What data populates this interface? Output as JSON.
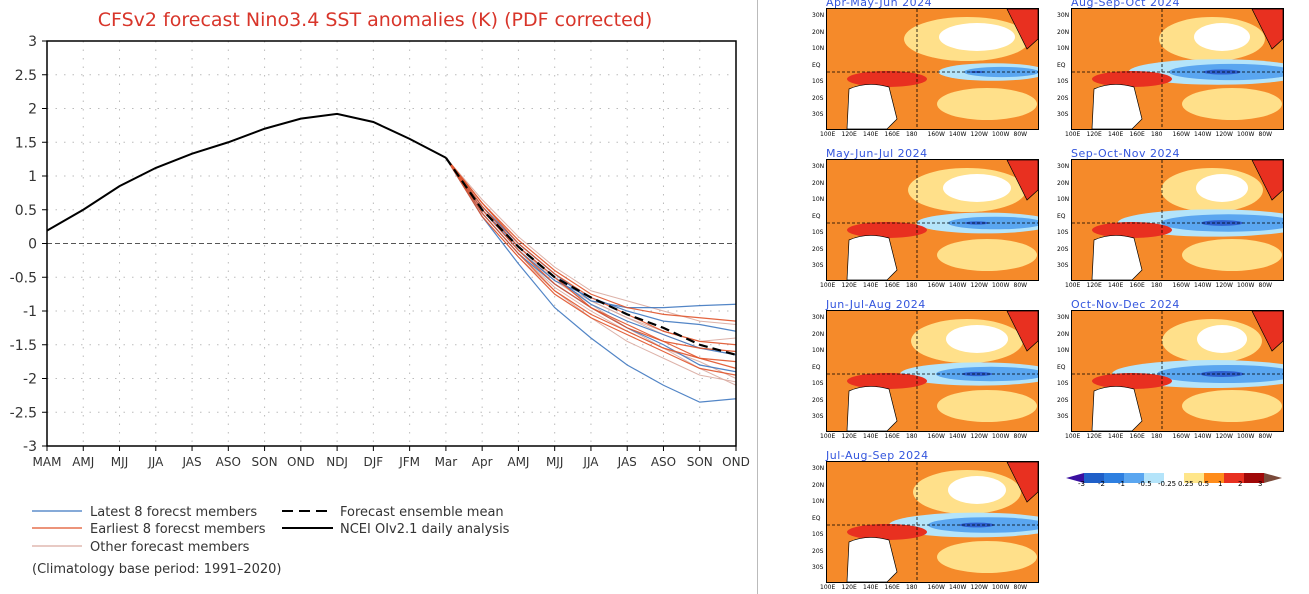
{
  "chart_data": {
    "type": "line",
    "title": "CFSv2 forecast Nino3.4 SST anomalies (K) (PDF corrected)",
    "xlabel": "",
    "ylabel": "",
    "categories": [
      "MAM",
      "AMJ",
      "MJJ",
      "JJA",
      "JAS",
      "ASO",
      "SON",
      "OND",
      "NDJ",
      "DJF",
      "JFM",
      "Mar",
      "Apr",
      "AMJ",
      "MJJ",
      "JJA",
      "JAS",
      "ASO",
      "SON",
      "OND"
    ],
    "ylim": [
      -3,
      3
    ],
    "yticks": [
      "3",
      "2.5",
      "2",
      "1.5",
      "1",
      "0.5",
      "0",
      "-0.5",
      "-1",
      "-1.5",
      "-2",
      "-2.5",
      "-3"
    ],
    "grid": true,
    "zero_line": "dashed",
    "analysis": {
      "name": "NCEI OIv2.1 daily analysis",
      "color": "#000000",
      "start_index": 0,
      "values": [
        0.19,
        0.5,
        0.85,
        1.12,
        1.33,
        1.5,
        1.7,
        1.85,
        1.92,
        1.8,
        1.55,
        1.27
      ]
    },
    "ensemble_mean": {
      "name": "Forecast ensemble mean",
      "color": "#000000",
      "start_index": 11,
      "values": [
        1.27,
        0.5,
        -0.05,
        -0.5,
        -0.8,
        -1.05,
        -1.25,
        -1.5,
        -1.65
      ]
    },
    "members": [
      {
        "group": "latest",
        "values": [
          1.27,
          0.4,
          -0.3,
          -0.95,
          -1.4,
          -1.8,
          -2.1,
          -2.35,
          -2.3
        ]
      },
      {
        "group": "latest",
        "values": [
          1.27,
          0.55,
          0.0,
          -0.45,
          -0.85,
          -0.95,
          -0.95,
          -0.92,
          -0.9
        ]
      },
      {
        "group": "latest",
        "values": [
          1.27,
          0.5,
          -0.1,
          -0.55,
          -0.8,
          -1.0,
          -1.15,
          -1.2,
          -1.3
        ]
      },
      {
        "group": "latest",
        "values": [
          1.27,
          0.45,
          -0.15,
          -0.6,
          -0.95,
          -1.25,
          -1.5,
          -1.8,
          -1.9
        ]
      },
      {
        "group": "latest",
        "values": [
          1.27,
          0.5,
          -0.05,
          -0.5,
          -0.9,
          -1.15,
          -1.35,
          -1.55,
          -1.65
        ]
      },
      {
        "group": "earliest",
        "values": [
          1.27,
          0.6,
          0.05,
          -0.4,
          -0.75,
          -0.95,
          -1.05,
          -1.1,
          -1.15
        ]
      },
      {
        "group": "earliest",
        "values": [
          1.27,
          0.45,
          -0.15,
          -0.7,
          -1.05,
          -1.3,
          -1.55,
          -1.7,
          -1.85
        ]
      },
      {
        "group": "earliest",
        "values": [
          1.27,
          0.55,
          -0.05,
          -0.5,
          -0.95,
          -1.25,
          -1.45,
          -1.55,
          -1.6
        ]
      },
      {
        "group": "earliest",
        "values": [
          1.27,
          0.4,
          -0.2,
          -0.75,
          -1.1,
          -1.35,
          -1.6,
          -1.85,
          -1.95
        ]
      },
      {
        "group": "earliest",
        "values": [
          1.27,
          0.6,
          0.0,
          -0.45,
          -0.8,
          -1.05,
          -1.3,
          -1.45,
          -1.5
        ]
      },
      {
        "group": "earliest",
        "values": [
          1.27,
          0.5,
          -0.1,
          -0.6,
          -0.95,
          -1.2,
          -1.45,
          -1.7,
          -1.75
        ]
      },
      {
        "group": "other",
        "values": [
          1.27,
          0.65,
          0.1,
          -0.35,
          -0.7,
          -0.85,
          -1.0,
          -1.15,
          -1.2
        ]
      },
      {
        "group": "other",
        "values": [
          1.27,
          0.5,
          -0.1,
          -0.55,
          -0.9,
          -1.25,
          -1.55,
          -1.85,
          -2.1
        ]
      },
      {
        "group": "other",
        "values": [
          1.27,
          0.55,
          0.0,
          -0.45,
          -0.85,
          -1.1,
          -1.35,
          -1.55,
          -1.6
        ]
      },
      {
        "group": "other",
        "values": [
          1.27,
          0.45,
          -0.15,
          -0.65,
          -1.0,
          -1.3,
          -1.55,
          -1.75,
          -2.0
        ]
      },
      {
        "group": "other",
        "values": [
          1.27,
          0.55,
          -0.05,
          -0.55,
          -0.85,
          -1.1,
          -1.3,
          -1.45,
          -1.4
        ]
      },
      {
        "group": "other",
        "values": [
          1.27,
          0.4,
          -0.2,
          -0.7,
          -1.1,
          -1.45,
          -1.7,
          -1.95,
          -2.05
        ]
      }
    ],
    "colors": {
      "latest": "#3f78c0",
      "earliest": "#e0532a",
      "other": "#d9aaa0",
      "title": "#d8352a"
    },
    "legend": {
      "latest": "Latest 8 forecst members",
      "earliest": "Earliest 8 forecst members",
      "other": "Other forecast members",
      "mean": "Forecast ensemble mean",
      "analysis": "NCEI OIv2.1 daily analysis",
      "note": "(Climatology base period: 1991–2020)"
    }
  },
  "maps": {
    "panels": [
      {
        "title": "Apr-May-Jun 2024",
        "strength": 0.35
      },
      {
        "title": "May-Jun-Jul 2024",
        "strength": 0.55
      },
      {
        "title": "Jun-Jul-Aug 2024",
        "strength": 0.7
      },
      {
        "title": "Jul-Aug-Sep 2024",
        "strength": 0.8
      },
      {
        "title": "Aug-Sep-Oct 2024",
        "strength": 0.85
      },
      {
        "title": "Sep-Oct-Nov 2024",
        "strength": 0.95
      },
      {
        "title": "Oct-Nov-Dec 2024",
        "strength": 1.0
      }
    ],
    "lat_labels": [
      "30N",
      "20N",
      "10N",
      "EQ",
      "10S",
      "20S",
      "30S"
    ],
    "lon_labels": [
      "100E",
      "120E",
      "140E",
      "160E",
      "180",
      "160W",
      "140W",
      "120W",
      "100W",
      "80W"
    ],
    "colorbar": {
      "labels": [
        "-3",
        "-2",
        "-1",
        "-0.5",
        "-0.25",
        "0.25",
        "0.5",
        "1",
        "2",
        "3"
      ],
      "colors": [
        "#3a0fa0",
        "#1f5fc8",
        "#2e7fe0",
        "#5aa6f0",
        "#b4e4fa",
        "#ffffff",
        "#ffe68a",
        "#ff8c1a",
        "#e83020",
        "#a00808",
        "#7a4a3a"
      ]
    }
  }
}
